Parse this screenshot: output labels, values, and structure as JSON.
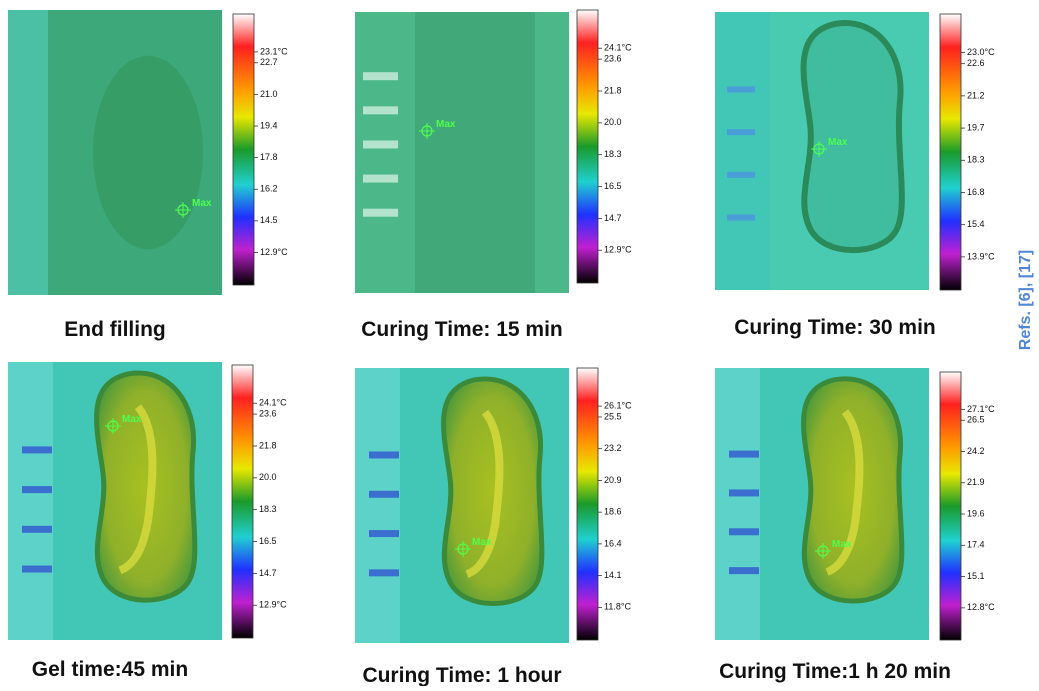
{
  "panels": [
    {
      "caption": "End filling",
      "marker": "Max",
      "scale": [
        "23.1°C",
        "22.7",
        "21.0",
        "19.4",
        "17.8",
        "16.2",
        "14.5",
        "12.9°C"
      ]
    },
    {
      "caption": "Curing Time: 15 min",
      "marker": "Max",
      "scale": [
        "24.1°C",
        "23.6",
        "21.8",
        "20.0",
        "18.3",
        "16.5",
        "14.7",
        "12.9°C"
      ]
    },
    {
      "caption": "Curing Time: 30 min",
      "marker": "Max",
      "scale": [
        "23.0°C",
        "22.6",
        "21.2",
        "19.7",
        "18.3",
        "16.8",
        "15.4",
        "13.9°C"
      ]
    },
    {
      "caption": "Gel time:45 min",
      "marker": "Max",
      "scale": [
        "24.1°C",
        "23.6",
        "21.8",
        "20.0",
        "18.3",
        "16.5",
        "14.7",
        "12.9°C"
      ]
    },
    {
      "caption": "Curing Time: 1 hour",
      "marker": "Max",
      "scale": [
        "26.1°C",
        "25.5",
        "23.2",
        "20.9",
        "18.6",
        "16.4",
        "14.1",
        "11.8°C"
      ]
    },
    {
      "caption": "Curing Time:1 h 20 min",
      "marker": "Max",
      "scale": [
        "27.1°C",
        "26.5",
        "24.2",
        "21.9",
        "19.6",
        "17.4",
        "15.1",
        "12.8°C"
      ]
    }
  ],
  "side_note": "Refs. [6], [17]"
}
